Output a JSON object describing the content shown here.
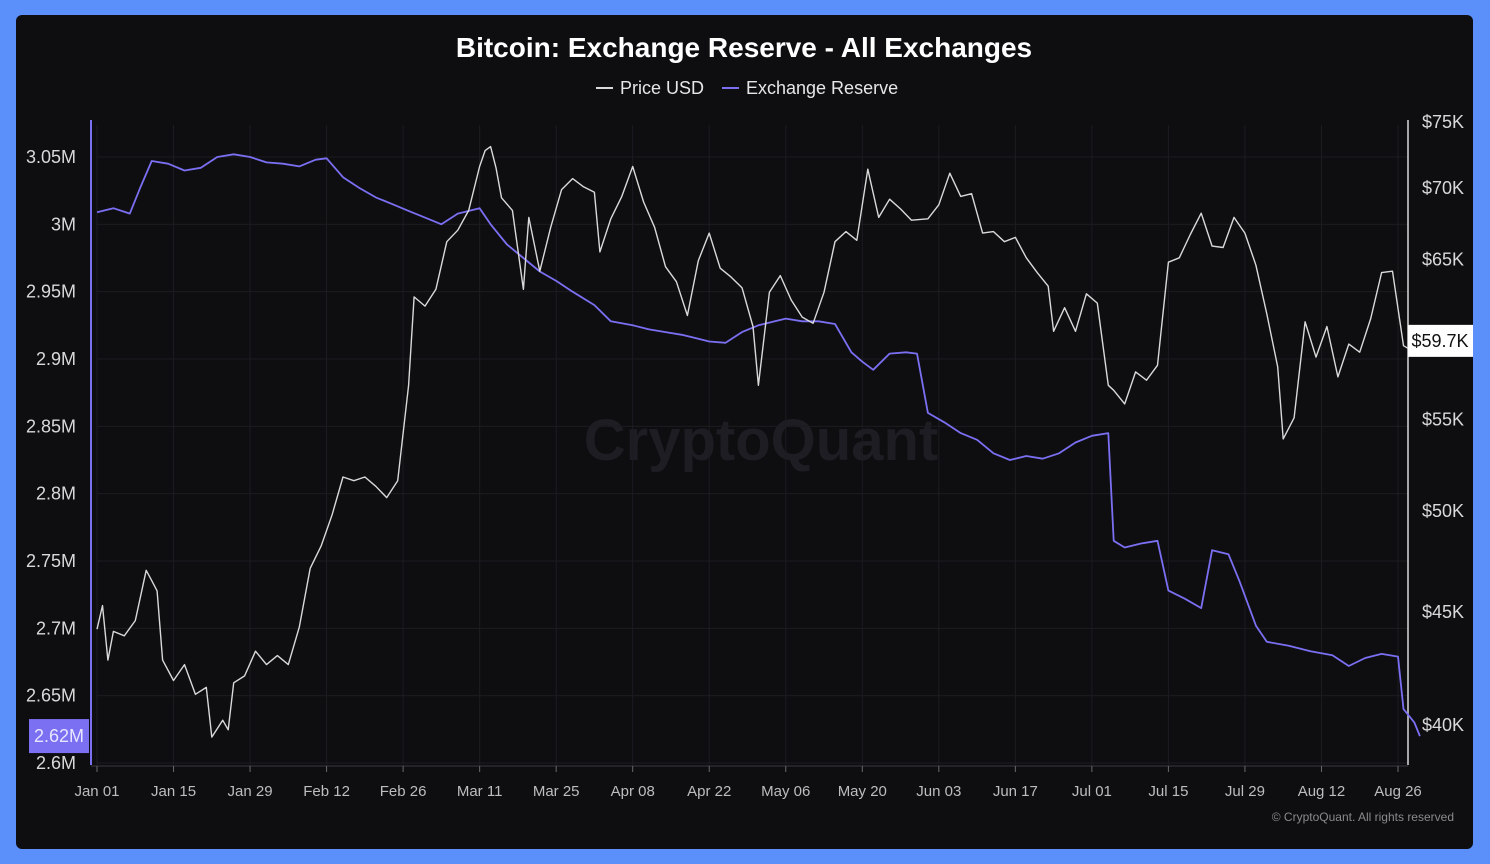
{
  "chart_data": {
    "type": "line",
    "title": "Bitcoin: Exchange Reserve - All Exchanges",
    "watermark": "CryptoQuant",
    "copyright": "© CryptoQuant. All rights reserved",
    "legend": {
      "placement": "top-center",
      "items": [
        {
          "name": "Price USD",
          "color": "#d9d9d9"
        },
        {
          "name": "Exchange Reserve",
          "color": "#7b6ff2"
        }
      ]
    },
    "x_ticks": [
      "Jan 01",
      "Jan 15",
      "Jan 29",
      "Feb 12",
      "Feb 26",
      "Mar 11",
      "Mar 25",
      "Apr 08",
      "Apr 22",
      "May 06",
      "May 20",
      "Jun 03",
      "Jun 17",
      "Jul 01",
      "Jul 15",
      "Jul 29",
      "Aug 12",
      "Aug 26"
    ],
    "left_axis": {
      "series": "Exchange Reserve",
      "ticks": [
        "3.05M",
        "3M",
        "2.95M",
        "2.9M",
        "2.85M",
        "2.8M",
        "2.75M",
        "2.7M",
        "2.65M",
        "2.6M"
      ],
      "tick_values": [
        3050000,
        3000000,
        2950000,
        2900000,
        2850000,
        2800000,
        2750000,
        2700000,
        2650000,
        2600000
      ],
      "range": [
        2600000,
        3050000
      ],
      "current_label": "2.62M",
      "current_value": 2620000,
      "current_color": "#7b6ff2"
    },
    "right_axis": {
      "series": "Price USD",
      "scale": "log",
      "ticks": [
        "$75K",
        "$70K",
        "$65K",
        "$55K",
        "$50K",
        "$45K",
        "$40K"
      ],
      "tick_values": [
        75000,
        70000,
        65000,
        55000,
        50000,
        45000,
        40000
      ],
      "current_label": "$59.7K",
      "current_value": 59700
    },
    "grid": true,
    "series": [
      {
        "name": "Exchange Reserve",
        "color": "#7b6ff2",
        "points": [
          [
            "Jan 01",
            3009000
          ],
          [
            "Jan 04",
            3012000
          ],
          [
            "Jan 07",
            3008000
          ],
          [
            "Jan 09",
            3028000
          ],
          [
            "Jan 11",
            3047000
          ],
          [
            "Jan 14",
            3045000
          ],
          [
            "Jan 17",
            3040000
          ],
          [
            "Jan 20",
            3042000
          ],
          [
            "Jan 23",
            3050000
          ],
          [
            "Jan 26",
            3052000
          ],
          [
            "Jan 29",
            3050000
          ],
          [
            "Feb 01",
            3046000
          ],
          [
            "Feb 04",
            3045000
          ],
          [
            "Feb 07",
            3043000
          ],
          [
            "Feb 10",
            3048000
          ],
          [
            "Feb 12",
            3049000
          ],
          [
            "Feb 15",
            3035000
          ],
          [
            "Feb 18",
            3027000
          ],
          [
            "Feb 21",
            3020000
          ],
          [
            "Feb 24",
            3015000
          ],
          [
            "Feb 27",
            3010000
          ],
          [
            "Mar 01",
            3005000
          ],
          [
            "Mar 04",
            3000000
          ],
          [
            "Mar 07",
            3008000
          ],
          [
            "Mar 11",
            3012000
          ],
          [
            "Mar 13",
            3000000
          ],
          [
            "Mar 16",
            2985000
          ],
          [
            "Mar 19",
            2975000
          ],
          [
            "Mar 22",
            2965000
          ],
          [
            "Mar 25",
            2958000
          ],
          [
            "Mar 28",
            2950000
          ],
          [
            "Apr 01",
            2940000
          ],
          [
            "Apr 04",
            2928000
          ],
          [
            "Apr 08",
            2925000
          ],
          [
            "Apr 11",
            2922000
          ],
          [
            "Apr 14",
            2920000
          ],
          [
            "Apr 17",
            2918000
          ],
          [
            "Apr 20",
            2915000
          ],
          [
            "Apr 22",
            2913000
          ],
          [
            "Apr 25",
            2912000
          ],
          [
            "Apr 28",
            2920000
          ],
          [
            "May 01",
            2925000
          ],
          [
            "May 04",
            2928000
          ],
          [
            "May 06",
            2930000
          ],
          [
            "May 09",
            2928000
          ],
          [
            "May 12",
            2928000
          ],
          [
            "May 15",
            2926000
          ],
          [
            "May 18",
            2905000
          ],
          [
            "May 20",
            2898000
          ],
          [
            "May 22",
            2892000
          ],
          [
            "May 25",
            2904000
          ],
          [
            "May 28",
            2905000
          ],
          [
            "May 30",
            2904000
          ],
          [
            "Jun 01",
            2860000
          ],
          [
            "Jun 04",
            2853000
          ],
          [
            "Jun 07",
            2845000
          ],
          [
            "Jun 10",
            2840000
          ],
          [
            "Jun 13",
            2830000
          ],
          [
            "Jun 16",
            2825000
          ],
          [
            "Jun 19",
            2828000
          ],
          [
            "Jun 22",
            2826000
          ],
          [
            "Jun 25",
            2830000
          ],
          [
            "Jun 28",
            2838000
          ],
          [
            "Jul 01",
            2843000
          ],
          [
            "Jul 04",
            2845000
          ],
          [
            "Jul 05",
            2765000
          ],
          [
            "Jul 07",
            2760000
          ],
          [
            "Jul 10",
            2763000
          ],
          [
            "Jul 13",
            2765000
          ],
          [
            "Jul 15",
            2728000
          ],
          [
            "Jul 18",
            2722000
          ],
          [
            "Jul 21",
            2715000
          ],
          [
            "Jul 23",
            2758000
          ],
          [
            "Jul 26",
            2755000
          ],
          [
            "Jul 28",
            2735000
          ],
          [
            "Jul 31",
            2702000
          ],
          [
            "Aug 02",
            2690000
          ],
          [
            "Aug 06",
            2687000
          ],
          [
            "Aug 10",
            2683000
          ],
          [
            "Aug 14",
            2680000
          ],
          [
            "Aug 17",
            2672000
          ],
          [
            "Aug 20",
            2678000
          ],
          [
            "Aug 23",
            2681000
          ],
          [
            "Aug 26",
            2679000
          ],
          [
            "Aug 27",
            2640000
          ],
          [
            "Aug 29",
            2630000
          ],
          [
            "Aug 30",
            2620000
          ]
        ]
      },
      {
        "name": "Price USD",
        "color": "#d9d9d9",
        "points": [
          [
            "Jan 01",
            44200
          ],
          [
            "Jan 02",
            45300
          ],
          [
            "Jan 03",
            42800
          ],
          [
            "Jan 04",
            44100
          ],
          [
            "Jan 06",
            43900
          ],
          [
            "Jan 08",
            44600
          ],
          [
            "Jan 10",
            47000
          ],
          [
            "Jan 11",
            46500
          ],
          [
            "Jan 12",
            46000
          ],
          [
            "Jan 13",
            42800
          ],
          [
            "Jan 15",
            41900
          ],
          [
            "Jan 17",
            42600
          ],
          [
            "Jan 19",
            41300
          ],
          [
            "Jan 21",
            41600
          ],
          [
            "Jan 22",
            39500
          ],
          [
            "Jan 24",
            40200
          ],
          [
            "Jan 25",
            39800
          ],
          [
            "Jan 26",
            41800
          ],
          [
            "Jan 28",
            42100
          ],
          [
            "Jan 30",
            43200
          ],
          [
            "Feb 01",
            42600
          ],
          [
            "Feb 03",
            43000
          ],
          [
            "Feb 05",
            42600
          ],
          [
            "Feb 07",
            44300
          ],
          [
            "Feb 09",
            47100
          ],
          [
            "Feb 11",
            48200
          ],
          [
            "Feb 13",
            49800
          ],
          [
            "Feb 15",
            51800
          ],
          [
            "Feb 17",
            51600
          ],
          [
            "Feb 19",
            51800
          ],
          [
            "Feb 21",
            51300
          ],
          [
            "Feb 23",
            50700
          ],
          [
            "Feb 25",
            51600
          ],
          [
            "Feb 27",
            57000
          ],
          [
            "Feb 28",
            62500
          ],
          [
            "Mar 01",
            61900
          ],
          [
            "Mar 03",
            63000
          ],
          [
            "Mar 05",
            66200
          ],
          [
            "Mar 07",
            67000
          ],
          [
            "Mar 09",
            68400
          ],
          [
            "Mar 11",
            71600
          ],
          [
            "Mar 12",
            72800
          ],
          [
            "Mar 13",
            73100
          ],
          [
            "Mar 14",
            71500
          ],
          [
            "Mar 15",
            69300
          ],
          [
            "Mar 17",
            68400
          ],
          [
            "Mar 19",
            63000
          ],
          [
            "Mar 20",
            67900
          ],
          [
            "Mar 22",
            64200
          ],
          [
            "Mar 24",
            67200
          ],
          [
            "Mar 26",
            69900
          ],
          [
            "Mar 28",
            70700
          ],
          [
            "Mar 30",
            70100
          ],
          [
            "Apr 01",
            69700
          ],
          [
            "Apr 02",
            65500
          ],
          [
            "Apr 04",
            67800
          ],
          [
            "Apr 06",
            69400
          ],
          [
            "Apr 08",
            71600
          ],
          [
            "Apr 10",
            69000
          ],
          [
            "Apr 12",
            67200
          ],
          [
            "Apr 14",
            64500
          ],
          [
            "Apr 16",
            63500
          ],
          [
            "Apr 18",
            61300
          ],
          [
            "Apr 20",
            64900
          ],
          [
            "Apr 22",
            66800
          ],
          [
            "Apr 24",
            64400
          ],
          [
            "Apr 26",
            63800
          ],
          [
            "Apr 28",
            63100
          ],
          [
            "Apr 30",
            60600
          ],
          [
            "May 01",
            57000
          ],
          [
            "May 03",
            62800
          ],
          [
            "May 05",
            63900
          ],
          [
            "May 07",
            62300
          ],
          [
            "May 09",
            61200
          ],
          [
            "May 11",
            60800
          ],
          [
            "May 13",
            62800
          ],
          [
            "May 15",
            66200
          ],
          [
            "May 17",
            66900
          ],
          [
            "May 19",
            66300
          ],
          [
            "May 21",
            71400
          ],
          [
            "May 23",
            67900
          ],
          [
            "May 25",
            69200
          ],
          [
            "May 27",
            68500
          ],
          [
            "May 29",
            67700
          ],
          [
            "Jun 01",
            67800
          ],
          [
            "Jun 03",
            68800
          ],
          [
            "Jun 05",
            71100
          ],
          [
            "Jun 07",
            69400
          ],
          [
            "Jun 09",
            69600
          ],
          [
            "Jun 11",
            66800
          ],
          [
            "Jun 13",
            66900
          ],
          [
            "Jun 15",
            66200
          ],
          [
            "Jun 17",
            66500
          ],
          [
            "Jun 19",
            65100
          ],
          [
            "Jun 21",
            64100
          ],
          [
            "Jun 23",
            63200
          ],
          [
            "Jun 24",
            60300
          ],
          [
            "Jun 26",
            61800
          ],
          [
            "Jun 28",
            60300
          ],
          [
            "Jun 30",
            62700
          ],
          [
            "Jul 02",
            62100
          ],
          [
            "Jul 04",
            57000
          ],
          [
            "Jul 05",
            56700
          ],
          [
            "Jul 07",
            55900
          ],
          [
            "Jul 09",
            57800
          ],
          [
            "Jul 11",
            57300
          ],
          [
            "Jul 13",
            58200
          ],
          [
            "Jul 15",
            64800
          ],
          [
            "Jul 17",
            65100
          ],
          [
            "Jul 19",
            66700
          ],
          [
            "Jul 21",
            68200
          ],
          [
            "Jul 23",
            65900
          ],
          [
            "Jul 25",
            65800
          ],
          [
            "Jul 27",
            67900
          ],
          [
            "Jul 29",
            66800
          ],
          [
            "Jul 31",
            64600
          ],
          [
            "Aug 02",
            61400
          ],
          [
            "Aug 04",
            58100
          ],
          [
            "Aug 05",
            53900
          ],
          [
            "Aug 07",
            55100
          ],
          [
            "Aug 09",
            60900
          ],
          [
            "Aug 11",
            58700
          ],
          [
            "Aug 13",
            60600
          ],
          [
            "Aug 15",
            57500
          ],
          [
            "Aug 17",
            59500
          ],
          [
            "Aug 19",
            59000
          ],
          [
            "Aug 21",
            61100
          ],
          [
            "Aug 23",
            64100
          ],
          [
            "Aug 25",
            64200
          ],
          [
            "Aug 27",
            59400
          ],
          [
            "Aug 29",
            59000
          ],
          [
            "Aug 30",
            59700
          ]
        ]
      }
    ]
  }
}
